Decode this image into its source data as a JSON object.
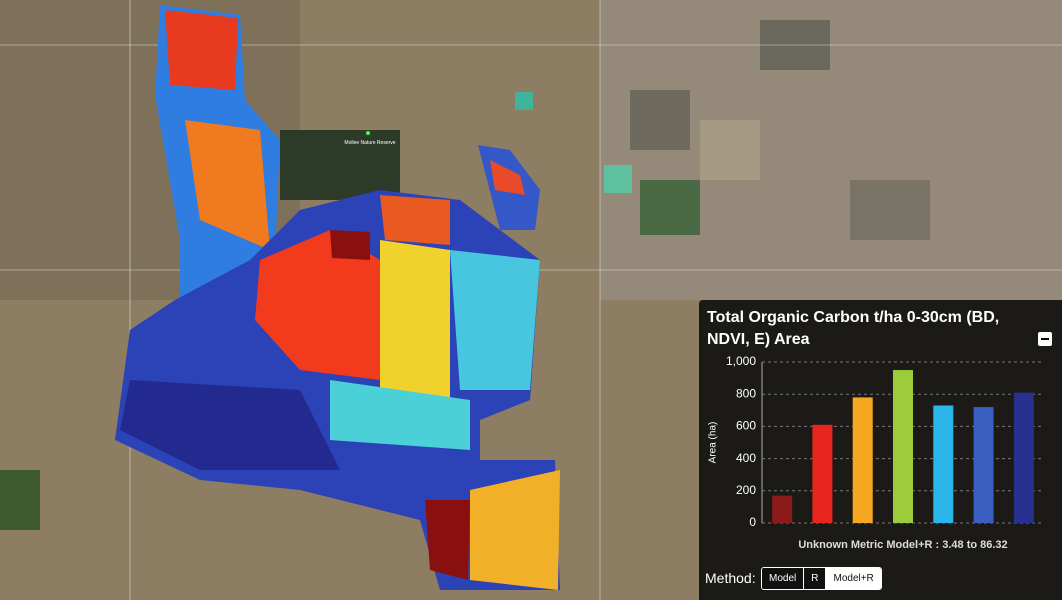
{
  "map": {
    "label": "Mollee Nature Reserve"
  },
  "chart_data": {
    "type": "bar",
    "title": "Total Organic Carbon t/ha 0-30cm (BD, NDVI, E) Area",
    "ylabel": "Area (ha)",
    "xlabel": "Unknown Metric Model+R : 3.48 to 86.32",
    "categories": [
      null,
      null,
      null,
      null,
      null,
      null,
      null
    ],
    "values": [
      170,
      610,
      780,
      950,
      730,
      720,
      810
    ],
    "colors": [
      "#8b1a1a",
      "#e8261f",
      "#f7a823",
      "#9ccc3c",
      "#2ab6e8",
      "#3a5fc0",
      "#27308f"
    ],
    "ylim": [
      0,
      1000
    ],
    "yticks": [
      0,
      200,
      400,
      600,
      800,
      {
        "value": 1000,
        "label": "1,000"
      }
    ],
    "grid": true
  },
  "controls": {
    "method_label": "Method:",
    "buttons": [
      "Model",
      "R",
      "Model+R"
    ]
  }
}
